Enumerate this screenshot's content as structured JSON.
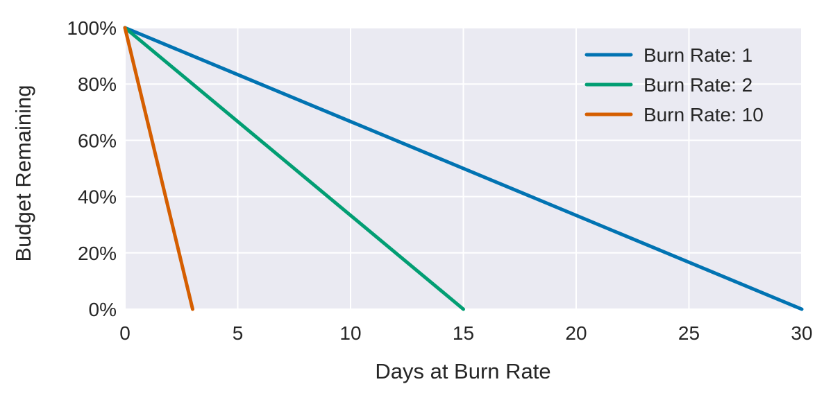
{
  "figure": {
    "background": "#ffffff"
  },
  "chart_data": {
    "type": "line",
    "title": "",
    "xlabel": "Days at Burn Rate",
    "ylabel": "Budget Remaining",
    "xlim": [
      0,
      30
    ],
    "ylim": [
      0,
      100
    ],
    "x_ticks": [
      0,
      5,
      10,
      15,
      20,
      25,
      30
    ],
    "x_tick_labels": [
      "0",
      "5",
      "10",
      "15",
      "20",
      "25",
      "30"
    ],
    "y_ticks": [
      0,
      20,
      40,
      60,
      80,
      100
    ],
    "y_tick_labels": [
      "0%",
      "20%",
      "40%",
      "60%",
      "80%",
      "100%"
    ],
    "grid": true,
    "plot_background": "#eaeaf2",
    "grid_color": "#ffffff",
    "text_color": "#262626",
    "legend": {
      "position": "upper right",
      "frame": false,
      "entries": [
        "Burn Rate: 1",
        "Burn Rate: 2",
        "Burn Rate: 10"
      ]
    },
    "series": [
      {
        "name": "Burn Rate: 1",
        "color": "#0173b2",
        "points": [
          [
            0,
            100
          ],
          [
            30,
            0
          ]
        ]
      },
      {
        "name": "Burn Rate: 2",
        "color": "#029e73",
        "points": [
          [
            0,
            100
          ],
          [
            15,
            0
          ]
        ]
      },
      {
        "name": "Burn Rate: 10",
        "color": "#d55e00",
        "points": [
          [
            0,
            100
          ],
          [
            3,
            0
          ]
        ]
      }
    ]
  }
}
